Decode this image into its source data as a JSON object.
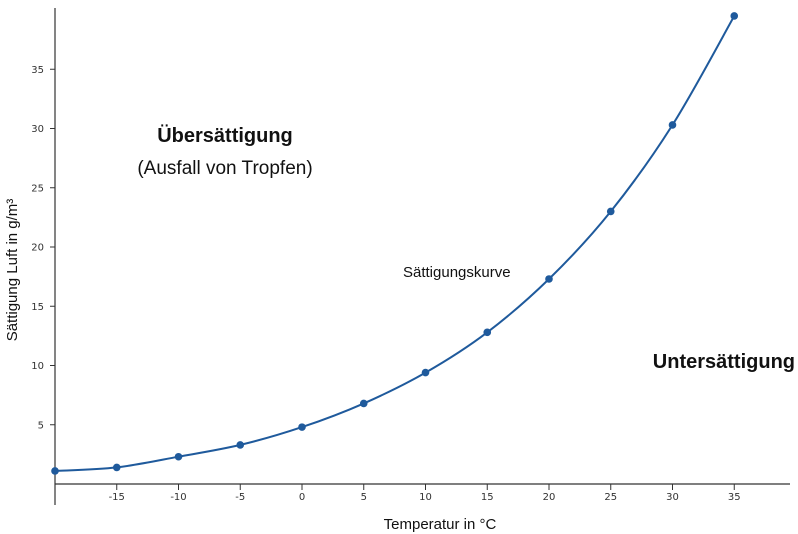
{
  "chart_data": {
    "type": "line",
    "title": "",
    "xlabel": "Temperatur in °C",
    "ylabel": "Sättigung Luft in g/m³",
    "xlim": [
      -20,
      38
    ],
    "ylim": [
      0,
      40
    ],
    "x_ticks": [
      -15,
      -10,
      -5,
      0,
      5,
      10,
      15,
      20,
      25,
      30,
      35
    ],
    "y_ticks": [
      5,
      10,
      15,
      20,
      25,
      30,
      35
    ],
    "grid": false,
    "series": [
      {
        "name": "Sättigungskurve",
        "color": "#1f5a9c",
        "x": [
          -20,
          -15,
          -10,
          -5,
          0,
          5,
          10,
          15,
          20,
          25,
          30,
          35
        ],
        "y": [
          1.1,
          1.4,
          2.3,
          3.3,
          4.8,
          6.8,
          9.4,
          12.8,
          17.3,
          23.0,
          30.3,
          39.5
        ]
      }
    ],
    "annotations": {
      "above_curve_title": "Übersättigung",
      "above_curve_subtitle": "(Ausfall von Tropfen)",
      "curve_label": "Sättigungskurve",
      "below_curve_title": "Untersättigung"
    }
  }
}
